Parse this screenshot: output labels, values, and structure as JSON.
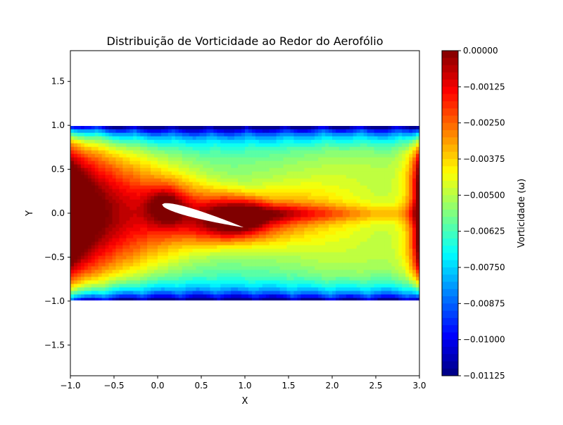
{
  "chart_data": {
    "type": "heatmap",
    "title": "Distribuição de Vorticidade ao Redor do Aerofólio",
    "xlabel": "X",
    "ylabel": "Y",
    "xlim": [
      -1.0,
      3.0
    ],
    "ylim": [
      -1.85,
      1.85
    ],
    "domain": {
      "x": [
        -1.0,
        3.0
      ],
      "y": [
        -1.0,
        1.0
      ]
    },
    "xticks": [
      -1.0,
      -0.5,
      0.0,
      0.5,
      1.0,
      1.5,
      2.0,
      2.5,
      3.0
    ],
    "xtick_labels": [
      "−1.0",
      "−0.5",
      "0.0",
      "0.5",
      "1.0",
      "1.5",
      "2.0",
      "2.5",
      "3.0"
    ],
    "yticks": [
      1.5,
      1.0,
      0.5,
      0.0,
      -0.5,
      -1.0,
      -1.5
    ],
    "ytick_labels": [
      "1.5",
      "1.0",
      "0.5",
      "0.0",
      "−0.5",
      "−1.0",
      "−1.5"
    ],
    "colormap": "jet",
    "colorbar": {
      "label": "Vorticidade (ω)",
      "min": -0.01125,
      "max": 0.0,
      "ticks": [
        0.0,
        -0.00125,
        -0.0025,
        -0.00375,
        -0.005,
        -0.00625,
        -0.0075,
        -0.00875,
        -0.01,
        -0.01125
      ],
      "tick_labels": [
        "0.00000",
        "−0.00125",
        "−0.00250",
        "−0.00375",
        "−0.00500",
        "−0.00625",
        "−0.00750",
        "−0.00875",
        "−0.01000",
        "−0.01125"
      ]
    },
    "airfoil": {
      "leading_edge": [
        0.05,
        0.1
      ],
      "trailing_edge": [
        0.98,
        -0.16
      ],
      "max_thickness_fraction": 0.1
    },
    "grid": false,
    "legend": "none"
  }
}
